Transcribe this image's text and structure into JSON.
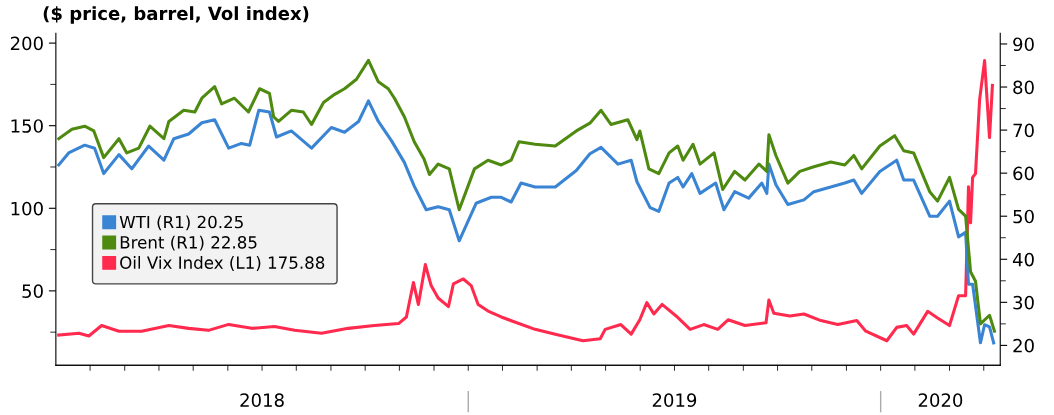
{
  "chart_data": {
    "type": "line",
    "title": "($ price, barrel, Vol index)",
    "xlim": [
      2018.0,
      2020.29
    ],
    "xticks": [
      {
        "value": 2018.5,
        "label": "2018"
      },
      {
        "value": 2019.5,
        "label": "2019"
      },
      {
        "value": 2020.145,
        "label": "2020"
      },
      {
        "value": 2018.083,
        "label": null
      },
      {
        "value": 2018.167,
        "label": null
      },
      {
        "value": 2018.25,
        "label": null
      },
      {
        "value": 2018.333,
        "label": null
      },
      {
        "value": 2018.417,
        "label": null
      },
      {
        "value": 2018.5,
        "label": null
      },
      {
        "value": 2018.583,
        "label": null
      },
      {
        "value": 2018.667,
        "label": null
      },
      {
        "value": 2018.75,
        "label": null
      },
      {
        "value": 2018.833,
        "label": null
      },
      {
        "value": 2018.917,
        "label": null
      },
      {
        "value": 2019.0,
        "label": null
      },
      {
        "value": 2019.083,
        "label": null
      },
      {
        "value": 2019.167,
        "label": null
      },
      {
        "value": 2019.25,
        "label": null
      },
      {
        "value": 2019.333,
        "label": null
      },
      {
        "value": 2019.417,
        "label": null
      },
      {
        "value": 2019.5,
        "label": null
      },
      {
        "value": 2019.583,
        "label": null
      },
      {
        "value": 2019.667,
        "label": null
      },
      {
        "value": 2019.75,
        "label": null
      },
      {
        "value": 2019.833,
        "label": null
      },
      {
        "value": 2019.917,
        "label": null
      },
      {
        "value": 2020.0,
        "label": null
      },
      {
        "value": 2020.083,
        "label": null
      },
      {
        "value": 2020.167,
        "label": null
      },
      {
        "value": 2020.25,
        "label": null
      }
    ],
    "ylim": [
      5,
      206
    ],
    "yticks": [
      50,
      100,
      150,
      200,
      {
        "value": 25,
        "label": null
      },
      {
        "value": 75,
        "label": null
      },
      {
        "value": 125,
        "label": null
      },
      {
        "value": 175,
        "label": null
      }
    ],
    "y2lim": [
      15.4,
      92.5
    ],
    "y2ticks": [
      20,
      30,
      40,
      50,
      60,
      70,
      80,
      90,
      {
        "value": 25,
        "label": null
      },
      {
        "value": 35,
        "label": null
      },
      {
        "value": 45,
        "label": null
      },
      {
        "value": 55,
        "label": null
      },
      {
        "value": 65,
        "label": null
      },
      {
        "value": 75,
        "label": null
      },
      {
        "value": 85,
        "label": null
      }
    ],
    "legend": "left",
    "grid": false,
    "marker": "none",
    "line_style": "solid",
    "series": [
      {
        "name": "WTI (R1) 20.25",
        "color": "#3a84d4",
        "axis": "y2",
        "x": [
          2018.007,
          2018.031,
          2018.07,
          2018.094,
          2018.116,
          2018.153,
          2018.184,
          2018.225,
          2018.262,
          2018.286,
          2018.322,
          2018.354,
          2018.385,
          2018.419,
          2018.45,
          2018.47,
          2018.492,
          2018.518,
          2018.535,
          2018.571,
          2018.62,
          2018.668,
          2018.7,
          2018.734,
          2018.758,
          2018.782,
          2018.814,
          2018.845,
          2018.869,
          2018.898,
          2018.927,
          2018.954,
          2018.978,
          2019.019,
          2019.056,
          2019.08,
          2019.104,
          2019.128,
          2019.162,
          2019.211,
          2019.262,
          2019.295,
          2019.322,
          2019.363,
          2019.395,
          2019.409,
          2019.441,
          2019.462,
          2019.487,
          2019.508,
          2019.521,
          2019.542,
          2019.562,
          2019.6,
          2019.62,
          2019.646,
          2019.68,
          2019.712,
          2019.724,
          2019.729,
          2019.746,
          2019.775,
          2019.814,
          2019.838,
          2019.879,
          2019.913,
          2019.935,
          2019.954,
          2019.998,
          2020.039,
          2020.056,
          2020.08,
          2020.119,
          2020.138,
          2020.167,
          2020.189,
          2020.206,
          2020.213,
          2020.223,
          2020.242,
          2020.252,
          2020.264,
          2020.274
        ],
        "values": [
          61.9,
          64.7,
          66.5,
          65.8,
          59.9,
          64.3,
          61.0,
          66.3,
          63.0,
          68.0,
          69.1,
          71.7,
          72.4,
          65.8,
          66.9,
          66.5,
          74.6,
          74.2,
          68.4,
          69.8,
          65.8,
          70.6,
          69.5,
          72.0,
          76.8,
          72.0,
          67.5,
          62.5,
          57.0,
          51.5,
          52.2,
          51.5,
          44.3,
          53.0,
          54.4,
          54.4,
          53.3,
          57.7,
          56.8,
          56.8,
          60.6,
          64.5,
          66.0,
          62.1,
          63.0,
          58.0,
          52.0,
          51.1,
          57.7,
          59.0,
          56.8,
          59.9,
          55.3,
          57.7,
          51.5,
          55.7,
          54.2,
          57.7,
          55.3,
          62.1,
          57.3,
          52.7,
          53.8,
          55.7,
          56.8,
          57.7,
          58.4,
          55.3,
          60.4,
          63.0,
          58.4,
          58.4,
          50.0,
          50.0,
          53.5,
          45.2,
          46.3,
          34.2,
          34.2,
          20.6,
          24.8,
          24.3,
          20.6
        ]
      },
      {
        "name": "Brent (R1) 22.85",
        "color": "#4f8a10",
        "axis": "y2",
        "x": [
          2018.007,
          2018.039,
          2018.07,
          2018.092,
          2018.116,
          2018.153,
          2018.172,
          2018.201,
          2018.228,
          2018.262,
          2018.274,
          2018.31,
          2018.337,
          2018.354,
          2018.385,
          2018.402,
          2018.433,
          2018.467,
          2018.494,
          2018.518,
          2018.528,
          2018.54,
          2018.571,
          2018.6,
          2018.62,
          2018.649,
          2018.676,
          2018.7,
          2018.729,
          2018.758,
          2018.782,
          2018.806,
          2018.821,
          2018.845,
          2018.869,
          2018.893,
          2018.906,
          2018.927,
          2018.954,
          2018.978,
          2019.015,
          2019.048,
          2019.08,
          2019.104,
          2019.123,
          2019.162,
          2019.211,
          2019.262,
          2019.295,
          2019.322,
          2019.346,
          2019.387,
          2019.409,
          2019.416,
          2019.438,
          2019.462,
          2019.487,
          2019.508,
          2019.521,
          2019.545,
          2019.562,
          2019.596,
          2019.617,
          2019.646,
          2019.671,
          2019.705,
          2019.724,
          2019.729,
          2019.746,
          2019.775,
          2019.804,
          2019.838,
          2019.879,
          2019.913,
          2019.935,
          2019.954,
          2019.998,
          2020.034,
          2020.056,
          2020.08,
          2020.119,
          2020.138,
          2020.167,
          2020.189,
          2020.206,
          2020.218,
          2020.23,
          2020.242,
          2020.264,
          2020.276
        ],
        "values": [
          68.0,
          70.2,
          70.9,
          69.8,
          63.6,
          68.0,
          64.7,
          65.8,
          70.9,
          68.0,
          72.0,
          74.6,
          74.2,
          77.4,
          80.1,
          76.1,
          77.4,
          74.2,
          79.6,
          78.5,
          73.1,
          72.0,
          74.6,
          74.2,
          71.3,
          76.4,
          78.3,
          79.6,
          81.8,
          86.2,
          81.2,
          79.6,
          77.4,
          73.1,
          67.3,
          63.2,
          59.7,
          62.1,
          61.0,
          51.5,
          61.0,
          63.0,
          61.9,
          63.0,
          67.3,
          66.7,
          66.3,
          69.8,
          71.6,
          74.6,
          71.3,
          72.4,
          67.8,
          69.8,
          61.0,
          59.9,
          64.7,
          66.3,
          63.0,
          66.7,
          62.1,
          64.7,
          56.2,
          60.4,
          58.4,
          62.1,
          60.4,
          68.9,
          64.1,
          57.7,
          60.4,
          61.5,
          62.6,
          61.9,
          64.1,
          61.0,
          66.3,
          68.7,
          65.2,
          64.7,
          55.7,
          53.5,
          59.0,
          51.6,
          50.0,
          37.1,
          34.9,
          25.0,
          27.0,
          23.3
        ]
      },
      {
        "name": "Oil Vix Index (L1) 175.88",
        "color": "#ff2a4d",
        "axis": "y",
        "x": [
          2018.007,
          2018.056,
          2018.08,
          2018.111,
          2018.153,
          2018.208,
          2018.274,
          2018.322,
          2018.37,
          2018.419,
          2018.475,
          2018.53,
          2018.579,
          2018.644,
          2018.709,
          2018.772,
          2018.831,
          2018.85,
          2018.867,
          2018.879,
          2018.896,
          2018.91,
          2018.927,
          2018.952,
          2018.964,
          2018.988,
          2019.007,
          2019.024,
          2019.048,
          2019.08,
          2019.111,
          2019.162,
          2019.211,
          2019.278,
          2019.32,
          2019.332,
          2019.37,
          2019.395,
          2019.416,
          2019.433,
          2019.45,
          2019.47,
          2019.504,
          2019.538,
          2019.571,
          2019.605,
          2019.63,
          2019.671,
          2019.722,
          2019.729,
          2019.741,
          2019.78,
          2019.814,
          2019.855,
          2019.896,
          2019.942,
          2019.964,
          2020.015,
          2020.039,
          2020.063,
          2020.08,
          2020.114,
          2020.138,
          2020.167,
          2020.189,
          2020.206,
          2020.213,
          2020.218,
          2020.223,
          2020.23,
          2020.24,
          2020.252,
          2020.264,
          2020.271
        ],
        "values": [
          23.3,
          24.4,
          22.7,
          29.0,
          25.6,
          25.6,
          29.0,
          27.3,
          26.1,
          29.7,
          27.3,
          28.4,
          26.1,
          24.4,
          27.3,
          29.0,
          30.2,
          34.2,
          55.1,
          41.8,
          65.9,
          53.2,
          45.7,
          40.5,
          54.3,
          57.2,
          53.2,
          41.8,
          37.8,
          34.2,
          31.3,
          26.7,
          23.8,
          19.8,
          21.0,
          26.7,
          29.6,
          23.8,
          32.5,
          42.9,
          36.0,
          41.8,
          34.8,
          26.7,
          29.6,
          26.7,
          32.5,
          29.0,
          30.7,
          44.5,
          36.5,
          34.8,
          36.0,
          32.0,
          29.6,
          32.0,
          25.6,
          19.8,
          27.9,
          29.0,
          23.8,
          37.6,
          33.6,
          29.0,
          47.1,
          47.1,
          113,
          91.2,
          118.7,
          121,
          165.8,
          189.4,
          142.8,
          174.4
        ]
      }
    ]
  }
}
